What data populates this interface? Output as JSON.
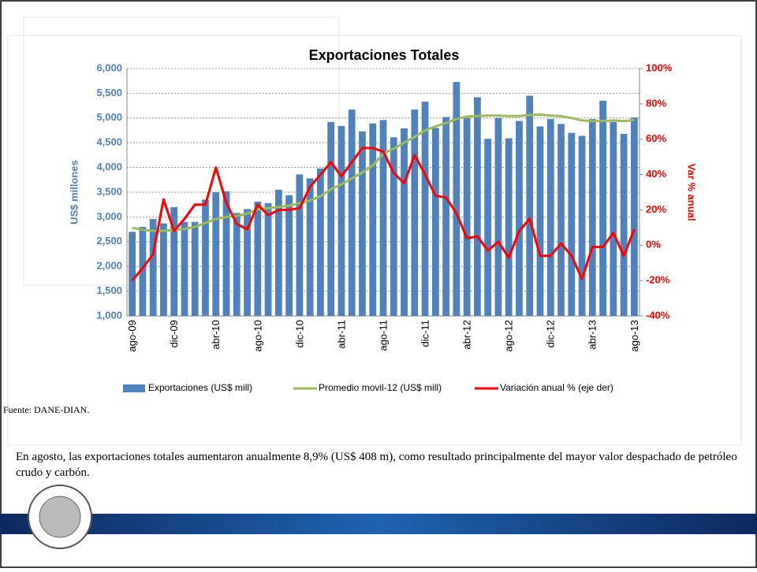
{
  "chart_data": {
    "type": "bar",
    "title": "Exportaciones Totales",
    "y_label": "US$ millones",
    "y2_label": "Var % anual",
    "categories": [
      "ago-09",
      null,
      null,
      null,
      "dic-09",
      null,
      null,
      null,
      "abr-10",
      null,
      null,
      null,
      "ago-10",
      null,
      null,
      null,
      "dic-10",
      null,
      null,
      null,
      "abr-11",
      null,
      null,
      null,
      "ago-11",
      null,
      null,
      null,
      "dic-11",
      null,
      null,
      null,
      "abr-12",
      null,
      null,
      null,
      "ago-12",
      null,
      null,
      null,
      "dic-12",
      null,
      null,
      null,
      "abr-13",
      null,
      null,
      null,
      "ago-13"
    ],
    "series": [
      {
        "name": "Exportaciones (US$ mill)",
        "type": "bar",
        "color": "#4f81bd",
        "values": [
          2700,
          2800,
          2960,
          2870,
          3200,
          2900,
          2900,
          3350,
          3500,
          3520,
          3080,
          3160,
          3310,
          3280,
          3550,
          3440,
          3860,
          3780,
          3980,
          4920,
          4840,
          5170,
          4730,
          4890,
          4960,
          4610,
          4790,
          5170,
          5330,
          4800,
          5020,
          5730,
          5000,
          5420,
          4580,
          5000,
          4590,
          4940,
          5450,
          4830,
          4980,
          4880,
          4700,
          4640,
          4980,
          5350,
          4920,
          4680,
          5010
        ]
      },
      {
        "name": "Promedio movil-12 (US$ mill)",
        "type": "line",
        "color": "#9bbb59",
        "values": [
          2780,
          2740,
          2720,
          2720,
          2740,
          2760,
          2800,
          2880,
          2960,
          3000,
          3020,
          3070,
          3150,
          3180,
          3200,
          3230,
          3280,
          3330,
          3420,
          3560,
          3660,
          3780,
          3900,
          4040,
          4280,
          4380,
          4500,
          4620,
          4750,
          4830,
          4900,
          4980,
          5030,
          5040,
          5050,
          5050,
          5040,
          5040,
          5060,
          5070,
          5050,
          5040,
          5000,
          4950,
          4940,
          4940,
          4950,
          4940,
          4960
        ]
      },
      {
        "name": "Variación anual % (eje der)",
        "type": "line",
        "axis": "y2",
        "color": "#ff0000",
        "values": [
          -20,
          -13,
          -5,
          26,
          8,
          15,
          23,
          23,
          44,
          24,
          12,
          9,
          23,
          17,
          20,
          20,
          21,
          33,
          40,
          47,
          39,
          47,
          55,
          55,
          53,
          41,
          35,
          51,
          40,
          28,
          27,
          18,
          4,
          5,
          -3,
          2,
          -7,
          8,
          15,
          -6,
          -6,
          1,
          -6,
          -19,
          -1,
          -1,
          7,
          -6,
          9
        ]
      }
    ],
    "ylim": [
      1000,
      6000
    ],
    "yticks": [
      {
        "value": 1000,
        "label": "1,000"
      },
      {
        "value": 1500,
        "label": "1,500"
      },
      {
        "value": 2000,
        "label": "2,000"
      },
      {
        "value": 2500,
        "label": "2,500"
      },
      {
        "value": 3000,
        "label": "3,000"
      },
      {
        "value": 3500,
        "label": "3,500"
      },
      {
        "value": 4000,
        "label": "4,000"
      },
      {
        "value": 4500,
        "label": "4,500"
      },
      {
        "value": 5000,
        "label": "5,000"
      },
      {
        "value": 5500,
        "label": "5,500"
      },
      {
        "value": 6000,
        "label": "6,000"
      }
    ],
    "y2lim": [
      -40,
      100
    ],
    "y2ticks": [
      {
        "value": -40,
        "label": "-40%"
      },
      {
        "value": -20,
        "label": "-20%"
      },
      {
        "value": 0,
        "label": "0%"
      },
      {
        "value": 20,
        "label": "20%"
      },
      {
        "value": 40,
        "label": "40%"
      },
      {
        "value": 60,
        "label": "60%"
      },
      {
        "value": 80,
        "label": "80%"
      },
      {
        "value": 100,
        "label": "100%"
      }
    ],
    "grid": true,
    "legend": "bottom"
  },
  "source": "Fuente: DANE-DIAN.",
  "text": "En agosto, las exportaciones totales aumentaron anualmente 8,9% (US$ 408 m), como resultado principalmente del mayor valor despachado de petróleo crudo y carbón."
}
